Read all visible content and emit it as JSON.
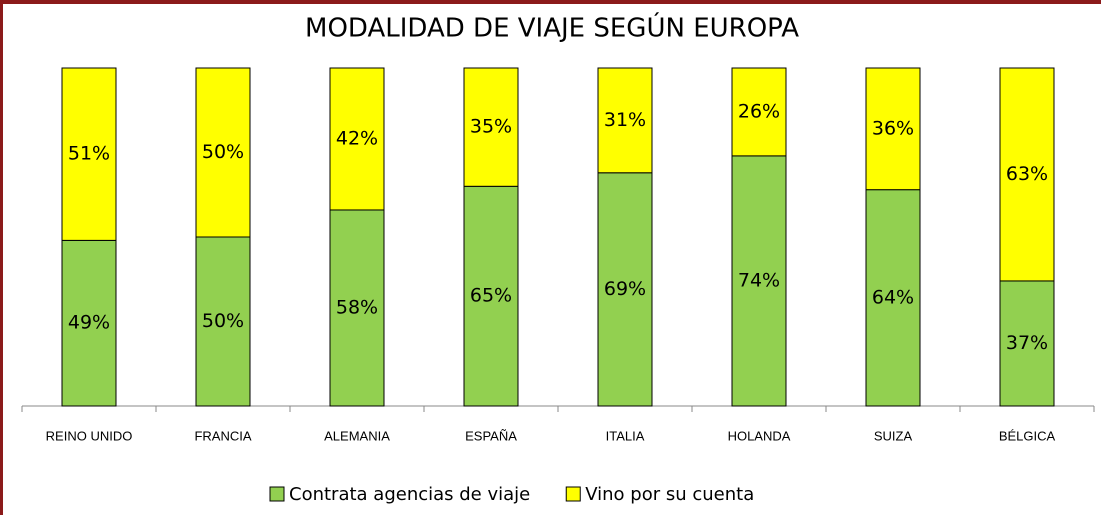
{
  "chart_data": {
    "type": "stacked_bar",
    "title": "MODALIDAD DE VIAJE SEGÚN EUROPA",
    "categories": [
      "REINO UNIDO",
      "FRANCIA",
      "ALEMANIA",
      "ESPAÑA",
      "ITALIA",
      "HOLANDA",
      "SUIZA",
      "BÉLGICA"
    ],
    "series": [
      {
        "name": "Contrata agencias de viaje",
        "color": "#92d050",
        "values": [
          49,
          50,
          58,
          65,
          69,
          74,
          64,
          37
        ],
        "value_labels": [
          "49%",
          "50%",
          "58%",
          "65%",
          "69%",
          "74%",
          "64%",
          "37%"
        ]
      },
      {
        "name": "Vino por su cuenta",
        "color": "#ffff00",
        "values": [
          51,
          50,
          42,
          35,
          31,
          26,
          36,
          63
        ],
        "value_labels": [
          "51%",
          "50%",
          "42%",
          "35%",
          "31%",
          "26%",
          "36%",
          "63%"
        ]
      }
    ],
    "ylim": [
      0,
      100
    ],
    "legend": "bottom"
  }
}
